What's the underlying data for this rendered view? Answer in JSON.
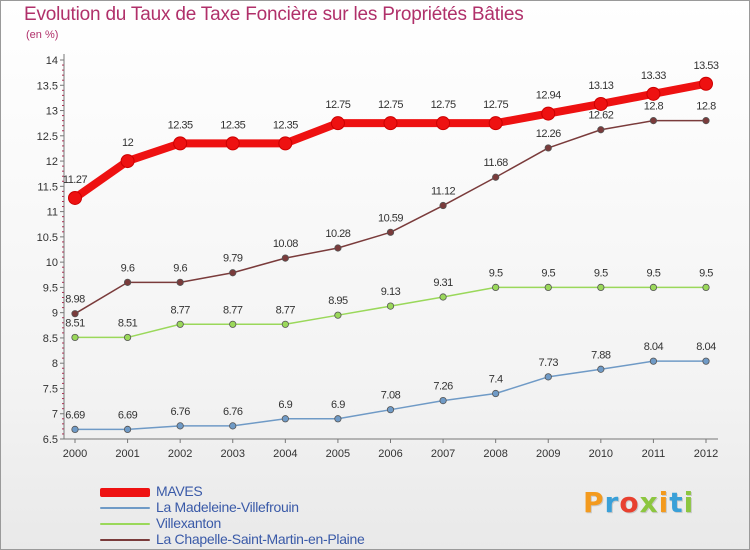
{
  "title": "Evolution du Taux de Taxe Foncière sur les Propriétés Bâties",
  "subtitle": "(en %)",
  "logo": {
    "text": "Proxiti",
    "colors": [
      "#f39a1e",
      "#3aa0d8",
      "#e8402f",
      "#8cc63f",
      "#f39a1e",
      "#3aa0d8",
      "#8cc63f"
    ]
  },
  "chart_data": {
    "type": "line",
    "x": [
      "2000",
      "2001",
      "2002",
      "2003",
      "2004",
      "2005",
      "2006",
      "2007",
      "2008",
      "2009",
      "2010",
      "2011",
      "2012"
    ],
    "ylim": [
      6.5,
      14
    ],
    "yticks": [
      "6.5",
      "7",
      "7.5",
      "8",
      "8.5",
      "9",
      "9.5",
      "10",
      "10.5",
      "11",
      "11.5",
      "12",
      "12.5",
      "13",
      "13.5",
      "14"
    ],
    "grid": false,
    "legend_position": "bottom-left",
    "series": [
      {
        "name": "MAVES",
        "color": "#ee1111",
        "values": [
          11.27,
          12,
          12.35,
          12.35,
          12.35,
          12.75,
          12.75,
          12.75,
          12.75,
          12.94,
          13.13,
          13.33,
          13.53
        ],
        "labels": [
          "11.27",
          "12",
          "12.35",
          "12.35",
          "12.35",
          "12.75",
          "12.75",
          "12.75",
          "12.75",
          "12.94",
          "13.13",
          "13.33",
          "13.53"
        ]
      },
      {
        "name": "La Madeleine-Villefrouin",
        "color": "#6f9ac6",
        "values": [
          6.69,
          6.69,
          6.76,
          6.76,
          6.9,
          6.9,
          7.08,
          7.26,
          7.4,
          7.73,
          7.88,
          8.04,
          8.04
        ],
        "labels": [
          "6.69",
          "6.69",
          "6.76",
          "6.76",
          "6.9",
          "6.9",
          "7.08",
          "7.26",
          "7.4",
          "7.73",
          "7.88",
          "8.04",
          "8.04"
        ]
      },
      {
        "name": "Villexanton",
        "color": "#9ad85a",
        "values": [
          8.51,
          8.51,
          8.77,
          8.77,
          8.77,
          8.95,
          9.13,
          9.31,
          9.5,
          9.5,
          9.5,
          9.5,
          9.5
        ],
        "labels": [
          "8.51",
          "8.51",
          "8.77",
          "8.77",
          "8.77",
          "8.95",
          "9.13",
          "9.31",
          "9.5",
          "9.5",
          "9.5",
          "9.5",
          "9.5"
        ]
      },
      {
        "name": "La Chapelle-Saint-Martin-en-Plaine",
        "color": "#7a3b3b",
        "values": [
          8.98,
          9.6,
          9.6,
          9.79,
          10.08,
          10.28,
          10.59,
          11.12,
          11.68,
          12.26,
          12.62,
          12.8,
          12.8
        ],
        "labels": [
          "8.98",
          "9.6",
          "9.6",
          "9.79",
          "10.08",
          "10.28",
          "10.59",
          "11.12",
          "11.68",
          "12.26",
          "12.62",
          "12.8",
          "12.8"
        ]
      }
    ]
  }
}
